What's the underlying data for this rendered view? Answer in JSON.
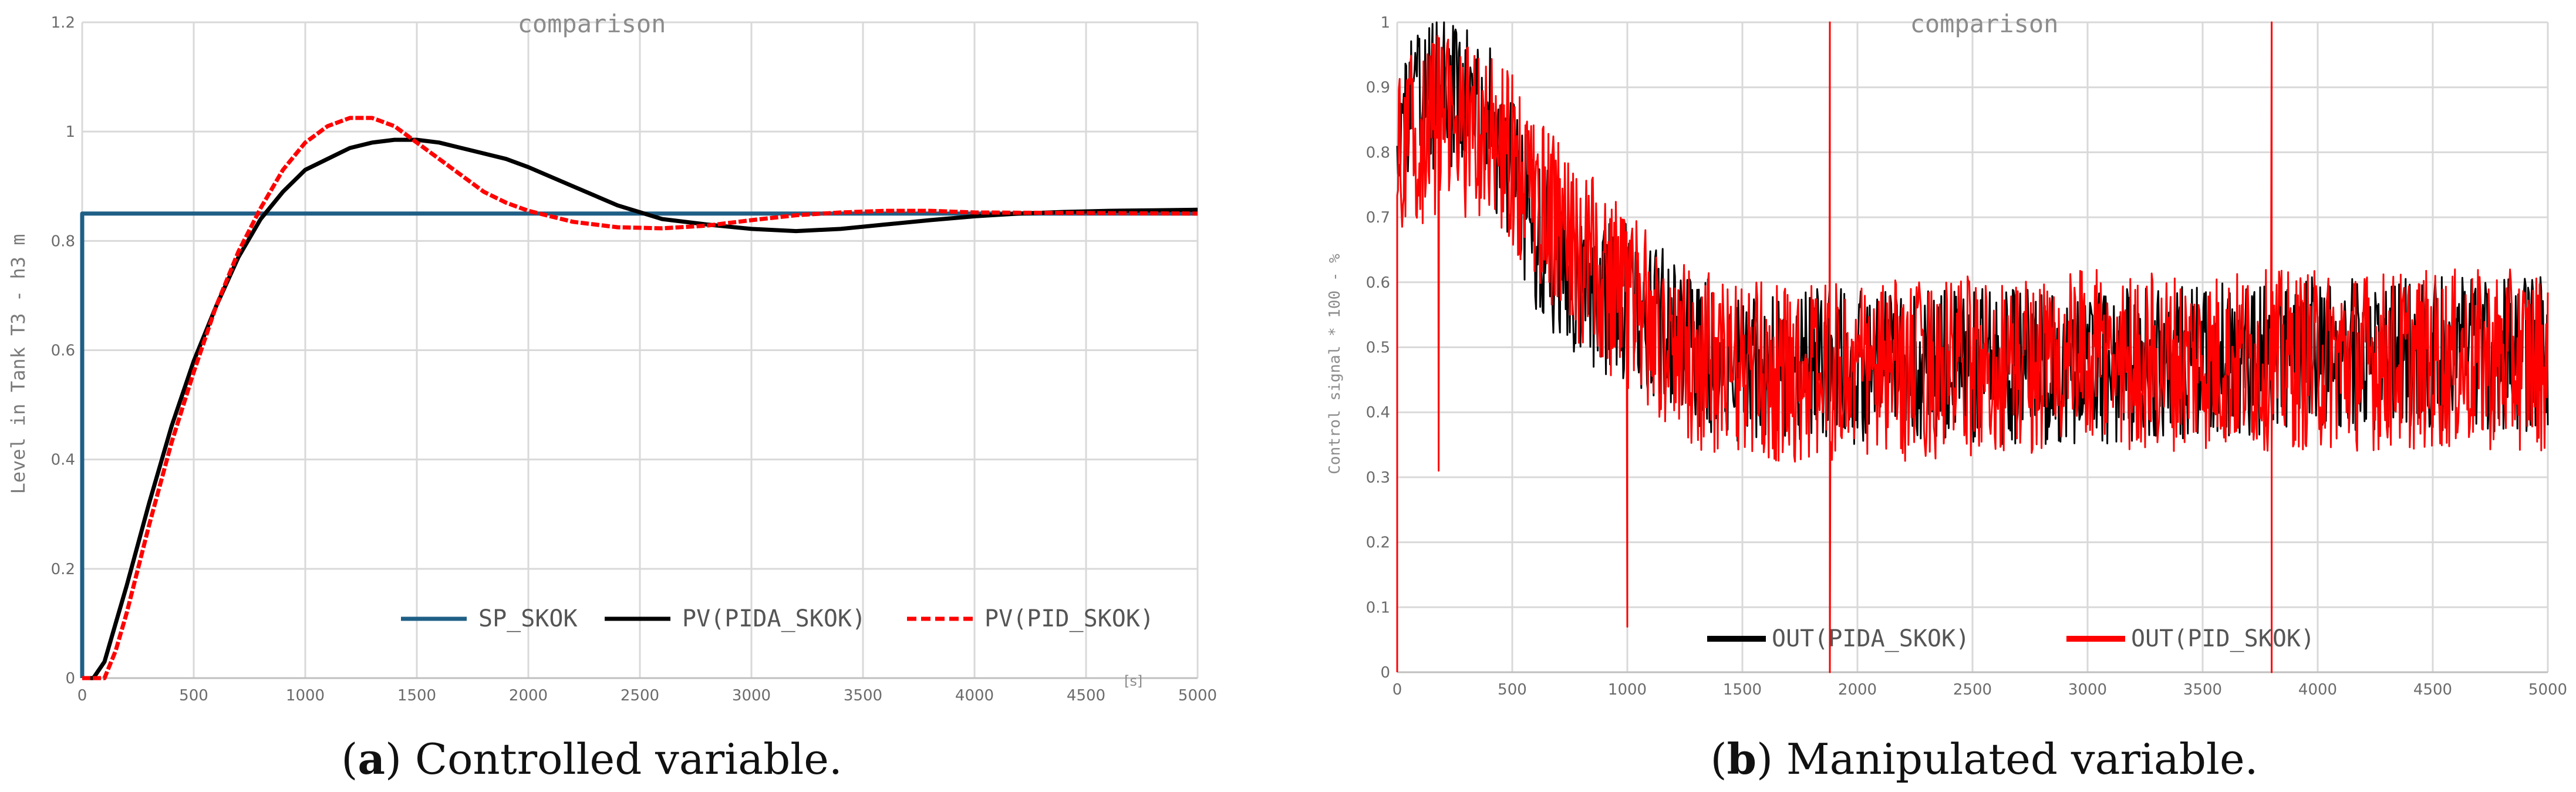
{
  "chart_data": [
    {
      "type": "line",
      "title": "comparison",
      "ylabel": "Level in Tank T3 -  h3 m",
      "xlabel": "[s]",
      "xlim": [
        0,
        5000
      ],
      "ylim": [
        0,
        1.2
      ],
      "xticks": [
        0,
        500,
        1000,
        1500,
        2000,
        2500,
        3000,
        3500,
        4000,
        4500,
        5000
      ],
      "yticks": [
        0,
        0.2,
        0.4,
        0.6,
        0.8,
        1,
        1.2
      ],
      "grid": true,
      "legend_position": "bottom-right",
      "series": [
        {
          "name": "SP_SKOK",
          "color": "#1f5f86",
          "style": "solid",
          "x": [
            0,
            0,
            5000
          ],
          "y": [
            0,
            0.85,
            0.85
          ]
        },
        {
          "name": "PV(PIDA_SKOK)",
          "color": "#000000",
          "style": "solid",
          "x": [
            0,
            50,
            100,
            150,
            200,
            300,
            400,
            500,
            600,
            700,
            800,
            900,
            1000,
            1100,
            1200,
            1300,
            1400,
            1500,
            1600,
            1700,
            1800,
            1900,
            2000,
            2200,
            2400,
            2600,
            2800,
            3000,
            3200,
            3400,
            3600,
            3800,
            4000,
            4200,
            4400,
            4600,
            4800,
            5000
          ],
          "y": [
            0,
            0,
            0.03,
            0.1,
            0.17,
            0.32,
            0.46,
            0.58,
            0.68,
            0.77,
            0.84,
            0.89,
            0.93,
            0.95,
            0.97,
            0.98,
            0.985,
            0.985,
            0.98,
            0.97,
            0.96,
            0.95,
            0.935,
            0.9,
            0.865,
            0.84,
            0.83,
            0.822,
            0.818,
            0.822,
            0.83,
            0.838,
            0.845,
            0.85,
            0.853,
            0.855,
            0.856,
            0.857
          ]
        },
        {
          "name": "PV(PID_SKOK)",
          "color": "#ff0000",
          "style": "dashed",
          "x": [
            0,
            100,
            150,
            200,
            300,
            400,
            500,
            600,
            700,
            800,
            900,
            1000,
            1100,
            1200,
            1300,
            1400,
            1500,
            1600,
            1700,
            1800,
            1900,
            2000,
            2200,
            2400,
            2600,
            2800,
            3000,
            3200,
            3400,
            3600,
            3800,
            4000,
            4500,
            5000
          ],
          "y": [
            0,
            0,
            0.05,
            0.12,
            0.28,
            0.43,
            0.56,
            0.68,
            0.78,
            0.86,
            0.93,
            0.98,
            1.01,
            1.025,
            1.025,
            1.01,
            0.98,
            0.95,
            0.92,
            0.89,
            0.87,
            0.855,
            0.835,
            0.825,
            0.823,
            0.828,
            0.838,
            0.847,
            0.852,
            0.855,
            0.855,
            0.852,
            0.851,
            0.85
          ]
        }
      ]
    },
    {
      "type": "line",
      "title": "comparison",
      "ylabel": "Control signal * 100 -  %",
      "xlim": [
        0,
        5000
      ],
      "ylim": [
        0,
        1
      ],
      "xticks": [
        0,
        500,
        1000,
        1500,
        2000,
        2500,
        3000,
        3500,
        4000,
        4500,
        5000
      ],
      "yticks": [
        0,
        0.1,
        0.2,
        0.3,
        0.4,
        0.5,
        0.6,
        0.7,
        0.8,
        0.9,
        1
      ],
      "grid": true,
      "legend_position": "bottom-center",
      "series": [
        {
          "name": "OUT(PIDA_SKOK)",
          "color": "#000000",
          "style": "solid",
          "x": [
            0,
            200,
            400,
            600,
            800,
            1000,
            1200,
            1400,
            1600,
            2000,
            2500,
            3000,
            3500,
            4000,
            4500,
            5000
          ],
          "y": [
            0.85,
            0.9,
            0.85,
            0.68,
            0.58,
            0.57,
            0.52,
            0.48,
            0.47,
            0.47,
            0.47,
            0.47,
            0.48,
            0.49,
            0.49,
            0.49
          ],
          "noise": 0.12
        },
        {
          "name": "OUT(PID_SKOK)",
          "color": "#ff0000",
          "style": "solid",
          "x": [
            0,
            200,
            400,
            600,
            800,
            1000,
            1200,
            1400,
            1600,
            2000,
            2500,
            3000,
            3500,
            4000,
            4500,
            5000
          ],
          "y": [
            0.8,
            0.85,
            0.82,
            0.74,
            0.64,
            0.57,
            0.5,
            0.47,
            0.46,
            0.46,
            0.47,
            0.48,
            0.48,
            0.48,
            0.48,
            0.48
          ],
          "noise": 0.14,
          "spikes": [
            {
              "x": 0,
              "y": 0
            },
            {
              "x": 180,
              "y": 0.31
            },
            {
              "x": 1000,
              "y": 0.07
            },
            {
              "x": 1880,
              "y": 0
            },
            {
              "x": 1880,
              "y": 1
            },
            {
              "x": 3800,
              "y": 0
            },
            {
              "x": 3800,
              "y": 1
            }
          ]
        }
      ]
    }
  ],
  "captions": [
    {
      "letter": "a",
      "text": ") Controlled variable."
    },
    {
      "letter": "b",
      "text": ") Manipulated variable."
    }
  ]
}
